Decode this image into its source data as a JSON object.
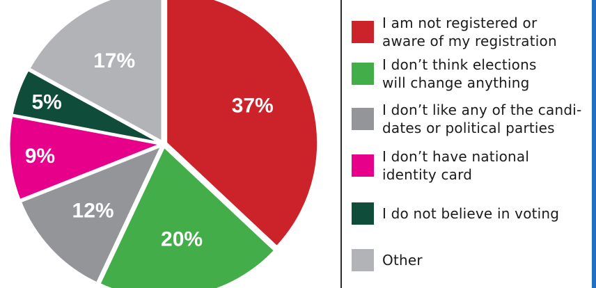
{
  "chart_data": {
    "type": "pie",
    "slices": [
      {
        "value": 37,
        "label": "37%",
        "color": "#cc2229",
        "legend": "I am not registered or aware of my registration",
        "label_color": "#ffffff"
      },
      {
        "value": 20,
        "label": "20%",
        "color": "#43ad49",
        "legend": "I don't think elections will change anything",
        "label_color": "#ffffff"
      },
      {
        "value": 12,
        "label": "12%",
        "color": "#939598",
        "legend": "I don't like any of the candi-dates or political parties",
        "label_color": "#ffffff"
      },
      {
        "value": 9,
        "label": "9%",
        "color": "#e6008a",
        "legend": "I don't have national identity card",
        "label_color": "#ffffff"
      },
      {
        "value": 5,
        "label": "5%",
        "color": "#0f4c3a",
        "legend": "I do not believe in voting",
        "label_color": "#ffffff"
      },
      {
        "value": 17,
        "label": "17%",
        "color": "#b2b3b6",
        "legend": "Other",
        "label_color": "#ffffff"
      }
    ],
    "start": "12 o'clock",
    "direction": "clockwise",
    "legend_position": "right"
  },
  "legend": {
    "items": [
      {
        "line1": "I am not registered or",
        "line2": "aware of my registration",
        "color": "#cc2229"
      },
      {
        "line1": "I don’t think elections",
        "line2": "will change anything",
        "color": "#43ad49"
      },
      {
        "line1": "I don’t like any of the candi-",
        "line2": "dates or political parties",
        "color": "#939598"
      },
      {
        "line1": "I don’t have national",
        "line2": "identity card",
        "color": "#e6008a"
      },
      {
        "line1": "I do not believe in voting",
        "line2": "",
        "color": "#0f4c3a"
      },
      {
        "line1": "Other",
        "line2": "",
        "color": "#b2b3b6"
      }
    ]
  }
}
